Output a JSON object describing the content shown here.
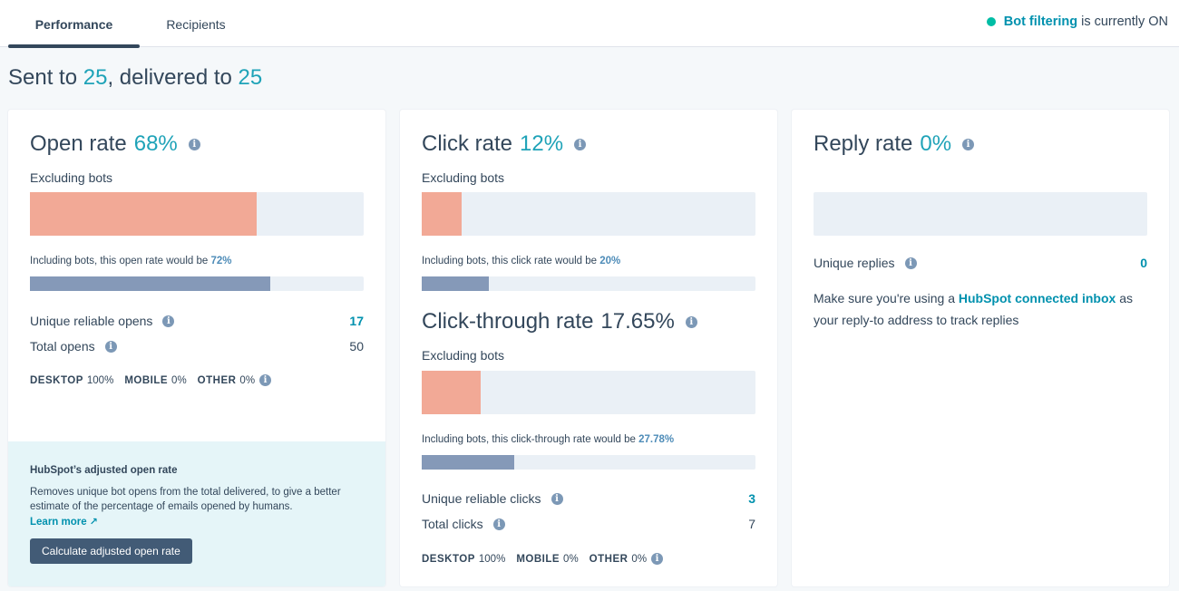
{
  "tabs": {
    "performance": "Performance",
    "recipients": "Recipients"
  },
  "bot_filtering": {
    "link": "Bot filtering",
    "status": "is currently ON"
  },
  "sent_summary": {
    "prefix": "Sent to",
    "sent": "25",
    "middle": ", delivered to",
    "delivered": "25"
  },
  "open_rate": {
    "title": "Open rate",
    "value": "68%",
    "excluding_label": "Excluding bots",
    "excluding_pct": 68,
    "including_text": "Including bots, this open rate would be",
    "including_value": "72%",
    "including_pct": 72,
    "unique_label": "Unique reliable opens",
    "unique_value": "17",
    "total_label": "Total opens",
    "total_value": "50",
    "devices": [
      {
        "name": "DESKTOP",
        "value": "100%"
      },
      {
        "name": "MOBILE",
        "value": "0%"
      },
      {
        "name": "OTHER",
        "value": "0%"
      }
    ],
    "adjusted": {
      "title": "HubSpot’s adjusted open rate",
      "description": "Removes unique bot opens from the total delivered, to give a better estimate of the percentage of emails opened by humans.",
      "link": "Learn more",
      "button": "Calculate adjusted open rate"
    }
  },
  "click_rate": {
    "title": "Click rate",
    "value": "12%",
    "excluding_label": "Excluding bots",
    "excluding_pct": 12,
    "including_text": "Including bots, this click rate would be",
    "including_value": "20%",
    "including_pct": 20
  },
  "click_through": {
    "title": "Click-through rate",
    "value": "17.65%",
    "excluding_label": "Excluding bots",
    "excluding_pct": 17.65,
    "including_text": "Including bots, this click-through rate would be",
    "including_value": "27.78%",
    "including_pct": 27.78,
    "unique_label": "Unique reliable clicks",
    "unique_value": "3",
    "total_label": "Total clicks",
    "total_value": "7",
    "devices": [
      {
        "name": "DESKTOP",
        "value": "100%"
      },
      {
        "name": "MOBILE",
        "value": "0%"
      },
      {
        "name": "OTHER",
        "value": "0%"
      }
    ]
  },
  "reply_rate": {
    "title": "Reply rate",
    "value": "0%",
    "bar_pct": 0,
    "unique_label": "Unique replies",
    "unique_value": "0",
    "note_before": "Make sure you're using a",
    "note_link": "HubSpot connected inbox",
    "note_after": "as your reply-to address to track replies"
  },
  "colors": {
    "accent_teal": "#1fa3b8",
    "link": "#0091ae",
    "bar_excluding": "#f2a996",
    "bar_including": "#8599b8",
    "bar_track": "#eaf0f6",
    "status_on": "#00bda5"
  }
}
